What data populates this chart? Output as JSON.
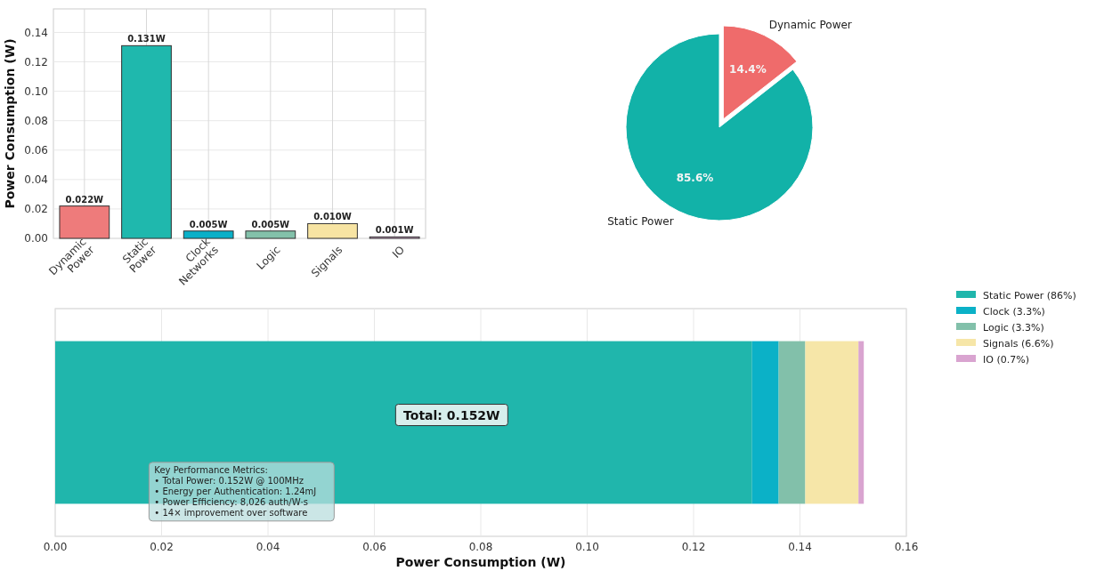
{
  "chart_data": [
    {
      "type": "bar",
      "ylabel": "Power Consumption (W)",
      "categories": [
        "Dynamic Power",
        "Static Power",
        "Clock Networks",
        "Logic",
        "Signals",
        "IO"
      ],
      "values": [
        0.022,
        0.131,
        0.005,
        0.005,
        0.01,
        0.001
      ],
      "colors": [
        "#ee7b7b",
        "#1fb8ad",
        "#0ab0c8",
        "#83c1aa",
        "#f7e4a3",
        "#d9a6d0"
      ],
      "value_labels": [
        "0.022W",
        "0.131W",
        "0.005W",
        "0.005W",
        "0.010W",
        "0.001W"
      ],
      "ylim": [
        0,
        0.156
      ],
      "yticks": [
        {
          "value": 0,
          "label": "0.00"
        },
        {
          "value": 0.02,
          "label": "0.02"
        },
        {
          "value": 0.04,
          "label": "0.04"
        },
        {
          "value": 0.06,
          "label": "0.06"
        },
        {
          "value": 0.08,
          "label": "0.08"
        },
        {
          "value": 0.1,
          "label": "0.10"
        },
        {
          "value": 0.12,
          "label": "0.12"
        },
        {
          "value": 0.14,
          "label": "0.14"
        }
      ],
      "grid": true
    },
    {
      "type": "pie",
      "categories": [
        "Dynamic Power",
        "Static Power"
      ],
      "values": [
        14.4,
        85.6
      ],
      "colors": [
        "#ef6b6b",
        "#12b2a8"
      ],
      "value_labels": [
        "14.4%",
        "85.6%"
      ]
    },
    {
      "type": "bar",
      "orientation": "horizontal",
      "stacked": true,
      "xlabel": "Power Consumption (W)",
      "categories": [
        null
      ],
      "series": [
        {
          "name": "Static Power (86%)",
          "color": "#20b6ac",
          "values": [
            0.131
          ]
        },
        {
          "name": "Clock (3.3%)",
          "color": "#0bb1c7",
          "values": [
            0.005
          ]
        },
        {
          "name": "Logic (3.3%)",
          "color": "#82c0aa",
          "values": [
            0.005
          ]
        },
        {
          "name": "Signals (6.6%)",
          "color": "#f6e6a8",
          "values": [
            0.01
          ]
        },
        {
          "name": "IO (0.7%)",
          "color": "#d9a4d0",
          "values": [
            0.001
          ]
        }
      ],
      "xlim": [
        0,
        0.16
      ],
      "xticks": [
        {
          "value": 0,
          "label": "0.00"
        },
        {
          "value": 0.02,
          "label": "0.02"
        },
        {
          "value": 0.04,
          "label": "0.04"
        },
        {
          "value": 0.06,
          "label": "0.06"
        },
        {
          "value": 0.08,
          "label": "0.08"
        },
        {
          "value": 0.1,
          "label": "0.10"
        },
        {
          "value": 0.12,
          "label": "0.12"
        },
        {
          "value": 0.14,
          "label": "0.14"
        },
        {
          "value": 0.16,
          "label": "0.16"
        }
      ],
      "grid": "x",
      "legend": "right",
      "annotations": [
        "Total: 0.152W",
        "Key Performance Metrics:\n• Total Power: 0.152W @ 100MHz\n• Energy per Authentication: 1.24mJ\n• Power Efficiency: 8,026 auth/W·s\n• 14× improvement over software"
      ]
    }
  ]
}
